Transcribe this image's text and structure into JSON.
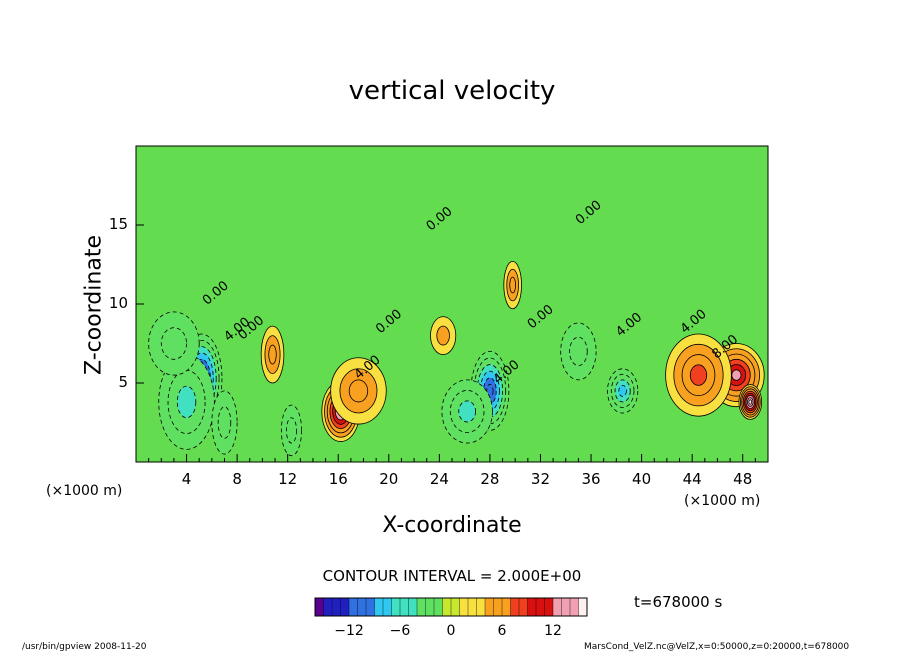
{
  "title": "vertical velocity",
  "chart_data": {
    "type": "heatmap",
    "title": "vertical velocity",
    "xlabel": "X-coordinate",
    "ylabel": "Z-coordinate",
    "x_unit": "(×1000 m)",
    "z_unit": "(×1000 m)",
    "xlim": [
      0,
      50
    ],
    "ylim": [
      0,
      20
    ],
    "x_ticks": [
      "4",
      "8",
      "12",
      "16",
      "20",
      "24",
      "28",
      "32",
      "36",
      "40",
      "44",
      "48"
    ],
    "y_ticks": [
      "5",
      "10",
      "15"
    ],
    "contour_labels": [
      {
        "text": "0.00",
        "x": 6.5,
        "z": 10.5
      },
      {
        "text": "4.00",
        "x": 8.2,
        "z": 8.2
      },
      {
        "text": "0.00",
        "x": 9.3,
        "z": 8.3
      },
      {
        "text": "4.00",
        "x": 18.5,
        "z": 5.8
      },
      {
        "text": "0.00",
        "x": 20.2,
        "z": 8.7
      },
      {
        "text": "0.00",
        "x": 24.2,
        "z": 15.2
      },
      {
        "text": "4.00",
        "x": 29.5,
        "z": 5.5
      },
      {
        "text": "0.00",
        "x": 32.2,
        "z": 9.0
      },
      {
        "text": "0.00",
        "x": 36.0,
        "z": 15.6
      },
      {
        "text": "4.00",
        "x": 39.2,
        "z": 8.5
      },
      {
        "text": "4.00",
        "x": 44.3,
        "z": 8.7
      },
      {
        "text": "8.00",
        "x": 46.8,
        "z": 7.1
      }
    ],
    "features": [
      {
        "x": 5.2,
        "z": 5.3,
        "value": -14,
        "sx": 1.6,
        "sz": 2.8
      },
      {
        "x": 4.0,
        "z": 3.8,
        "value": -6,
        "sx": 2.2,
        "sz": 3.0
      },
      {
        "x": 3.0,
        "z": 7.5,
        "value": -4,
        "sx": 2.0,
        "sz": 2.0
      },
      {
        "x": 7.0,
        "z": 2.5,
        "value": -3,
        "sx": 1.0,
        "sz": 2.0
      },
      {
        "x": 10.8,
        "z": 6.8,
        "value": 6,
        "sx": 0.9,
        "sz": 1.8
      },
      {
        "x": 12.3,
        "z": 2.0,
        "value": -4,
        "sx": 0.8,
        "sz": 1.6
      },
      {
        "x": 16.2,
        "z": 3.2,
        "value": 13,
        "sx": 1.5,
        "sz": 1.9
      },
      {
        "x": 17.6,
        "z": 4.5,
        "value": 5,
        "sx": 2.2,
        "sz": 2.1
      },
      {
        "x": 24.3,
        "z": 8.0,
        "value": 3,
        "sx": 1.0,
        "sz": 1.2
      },
      {
        "x": 28.0,
        "z": 4.5,
        "value": -12,
        "sx": 1.5,
        "sz": 2.5
      },
      {
        "x": 26.2,
        "z": 3.2,
        "value": -5,
        "sx": 2.0,
        "sz": 2.0
      },
      {
        "x": 29.8,
        "z": 11.2,
        "value": 6,
        "sx": 0.7,
        "sz": 1.5
      },
      {
        "x": 35.0,
        "z": 7.0,
        "value": -4,
        "sx": 1.4,
        "sz": 1.8
      },
      {
        "x": 38.5,
        "z": 4.5,
        "value": -8,
        "sx": 1.2,
        "sz": 1.4
      },
      {
        "x": 47.5,
        "z": 5.5,
        "value": 12,
        "sx": 2.2,
        "sz": 2.0
      },
      {
        "x": 44.5,
        "z": 5.5,
        "value": 8,
        "sx": 2.6,
        "sz": 2.6
      },
      {
        "x": 48.6,
        "z": 3.8,
        "value": 15,
        "sx": 0.9,
        "sz": 1.1
      }
    ]
  },
  "colorbar": {
    "ticks": [
      "−12",
      "−6",
      "0",
      "6",
      "12"
    ],
    "min": -16,
    "max": 16,
    "colors": [
      "#5a0090",
      "#2020c0",
      "#3070e0",
      "#30c8f0",
      "#40e0c0",
      "#60e060",
      "#c8e830",
      "#f8e040",
      "#f8a020",
      "#f04020",
      "#d81010",
      "#f0a0b0",
      "#fff0f0"
    ]
  },
  "contour_interval_text": "CONTOUR INTERVAL = 2.000E+00",
  "time_text": "t=678000 s",
  "footer": {
    "left": "/usr/bin/gpview  2008-11-20",
    "right": "MarsCond_VelZ.nc@VelZ,x=0:50000,z=0:20000,t=678000"
  }
}
